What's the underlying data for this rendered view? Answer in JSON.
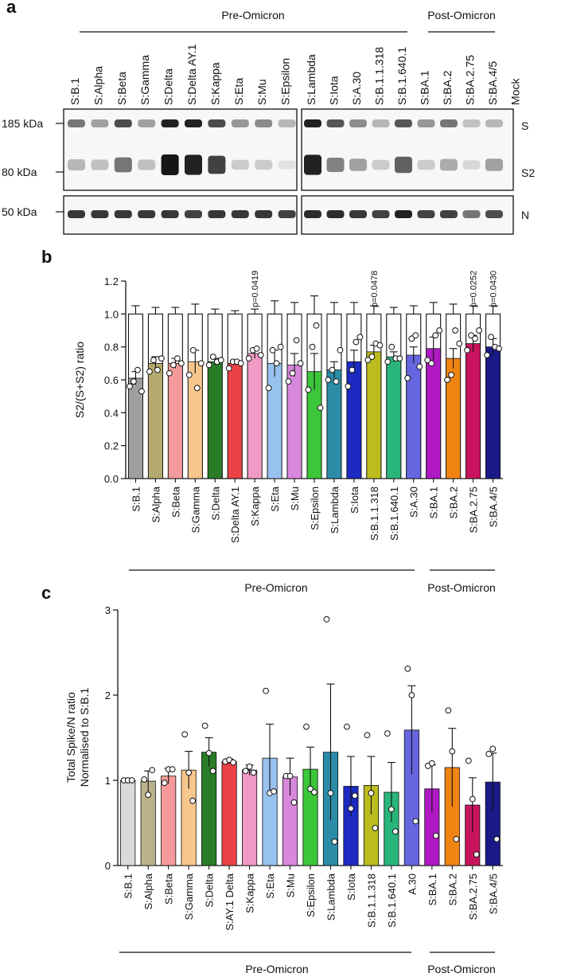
{
  "panel_a": {
    "letter": "a",
    "group_pre": "Pre-Omicron",
    "group_post": "Post-Omicron",
    "lanes_left": [
      "S:B.1",
      "S:Alpha",
      "S:Beta",
      "S:Gamma",
      "S:Delta",
      "S:Delta AY.1",
      "S:Kappa",
      "S:Eta",
      "S:Mu",
      "S:Epsilon"
    ],
    "lanes_right": [
      "S:Lambda",
      "S:Iota",
      "S:A.30",
      "S:B.1.1.318",
      "S:B.1.640.1",
      "S:BA.1",
      "S:BA.2",
      "S:BA.2.75",
      "S:BA.4/5",
      "Mock"
    ],
    "markers": [
      "185 kDa",
      "80 kDa",
      "50 kDa"
    ],
    "band_labels": [
      "S",
      "S2",
      "N"
    ],
    "band_intensity": {
      "S": [
        0.55,
        0.35,
        0.75,
        0.35,
        0.95,
        0.95,
        0.75,
        0.4,
        0.45,
        0.25,
        0.95,
        0.7,
        0.45,
        0.25,
        0.7,
        0.4,
        0.55,
        0.2,
        0.25,
        0.0
      ],
      "S2": [
        0.25,
        0.2,
        0.55,
        0.2,
        1.0,
        0.95,
        0.8,
        0.15,
        0.15,
        0.05,
        0.95,
        0.5,
        0.35,
        0.15,
        0.65,
        0.15,
        0.3,
        0.1,
        0.35,
        0.0
      ],
      "N": [
        0.85,
        0.85,
        0.85,
        0.85,
        0.85,
        0.8,
        0.85,
        0.85,
        0.85,
        0.8,
        0.9,
        0.9,
        0.85,
        0.8,
        0.95,
        0.8,
        0.8,
        0.55,
        0.75,
        0.0
      ]
    }
  },
  "chart_data": [
    {
      "panel": "b",
      "type": "bar",
      "ylabel": "S2/(S+S2) ratio",
      "ylim": [
        0,
        1.2
      ],
      "yticks": [
        "0.0",
        "0.2",
        "0.4",
        "0.6",
        "0.8",
        "1.0",
        "1.2"
      ],
      "categories": [
        "S:B.1",
        "S:Alpha",
        "S:Beta",
        "S:Gamma",
        "S:Delta",
        "S:Delta AY.1",
        "S:Kappa",
        "S:Eta",
        "S:Mu",
        "S:Epsilon",
        "S:Lambda",
        "S:Iota",
        "S:B.1.1.318",
        "S:B.1.640.1",
        "S:A.30",
        "S:BA.1",
        "S:BA.2",
        "S:BA.2.75",
        "S:BA.4/5"
      ],
      "values": [
        0.61,
        0.7,
        0.7,
        0.71,
        0.71,
        0.7,
        0.76,
        0.7,
        0.69,
        0.65,
        0.66,
        0.71,
        0.77,
        0.74,
        0.75,
        0.79,
        0.73,
        0.82,
        0.8
      ],
      "errors": [
        0.04,
        0.04,
        0.03,
        0.07,
        0.02,
        0.01,
        0.03,
        0.08,
        0.07,
        0.11,
        0.05,
        0.07,
        0.04,
        0.03,
        0.05,
        0.07,
        0.06,
        0.05,
        0.05
      ],
      "stacked_total": 1.0,
      "total_errors": [
        0.05,
        0.04,
        0.04,
        0.06,
        0.03,
        0.02,
        0.03,
        0.08,
        0.07,
        0.11,
        0.07,
        0.07,
        0.05,
        0.04,
        0.05,
        0.07,
        0.06,
        0.05,
        0.05
      ],
      "points": [
        [
          0.56,
          0.59,
          0.66,
          0.53
        ],
        [
          0.65,
          0.72,
          0.66,
          0.73
        ],
        [
          0.64,
          0.69,
          0.73,
          0.7
        ],
        [
          0.63,
          0.78,
          0.55,
          0.7
        ],
        [
          0.69,
          0.74,
          0.71,
          0.72
        ],
        [
          0.67,
          0.71,
          0.71,
          0.7
        ],
        [
          0.73,
          0.78,
          0.79,
          0.75
        ],
        [
          0.55,
          0.78,
          0.7,
          0.8
        ],
        [
          0.59,
          0.64,
          0.84,
          0.7
        ],
        [
          0.54,
          0.8,
          0.93,
          0.43
        ],
        [
          0.6,
          0.66,
          0.59,
          0.78
        ],
        [
          0.56,
          0.66,
          0.83,
          0.86
        ],
        [
          0.72,
          0.74,
          0.82,
          0.81
        ],
        [
          0.71,
          0.8,
          0.73,
          0.73
        ],
        [
          0.61,
          0.85,
          0.87,
          0.68
        ],
        [
          0.72,
          0.7,
          0.87,
          0.9
        ],
        [
          0.6,
          0.63,
          0.9,
          0.82
        ],
        [
          0.78,
          0.87,
          0.85,
          0.9
        ],
        [
          0.75,
          0.86,
          0.8,
          0.79
        ]
      ],
      "colors": [
        "#9e9e9e",
        "#b5aa6e",
        "#f49a9a",
        "#f6c68c",
        "#2a7d26",
        "#ea4245",
        "#f29ac6",
        "#98c2ee",
        "#d888dc",
        "#3cc63a",
        "#2b8ca8",
        "#1c2ac2",
        "#bcbc20",
        "#2ab57a",
        "#6666e0",
        "#b019c4",
        "#f08412",
        "#c8145e",
        "#1a1a86"
      ],
      "pvalues": [
        {
          "index": 6,
          "text": "p=0.0419"
        },
        {
          "index": 12,
          "text": "p=0.0478"
        },
        {
          "index": 17,
          "text": "p=0.0252"
        },
        {
          "index": 18,
          "text": "p=0.0430"
        }
      ],
      "group_pre": "Pre-Omicron",
      "group_post": "Post-Omicron"
    },
    {
      "panel": "c",
      "type": "bar",
      "ylabel_line1": "Total Spike/N ratio",
      "ylabel_line2": "Normalised to S:B.1",
      "ylim": [
        0,
        3
      ],
      "yticks": [
        "0",
        "1",
        "2",
        "3"
      ],
      "categories": [
        "S:B.1",
        "S:Alpha",
        "S:Beta",
        "S:Gamma",
        "S:Delta",
        "S:AY.1 Delta",
        "S:Kappa",
        "S:Eta",
        "S:Mu",
        "S:Epsilon",
        "S:Lambda",
        "S:Iota",
        "S:B.1.1.318",
        "S:B.1.640.1",
        "A.30",
        "S:BA.1",
        "S:BA.2",
        "S:BA.2.75",
        "S:BA.4/5"
      ],
      "values": [
        1.0,
        0.99,
        1.05,
        1.12,
        1.33,
        1.22,
        1.12,
        1.26,
        1.04,
        1.13,
        1.33,
        0.93,
        0.94,
        0.86,
        1.59,
        0.9,
        1.15,
        0.71,
        0.98
      ],
      "errors": [
        0.0,
        0.12,
        0.09,
        0.22,
        0.17,
        0.03,
        0.06,
        0.4,
        0.22,
        0.26,
        0.8,
        0.35,
        0.34,
        0.35,
        0.52,
        0.28,
        0.46,
        0.32,
        0.34
      ],
      "points": [
        [
          1.0,
          1.0,
          1.0
        ],
        [
          1.01,
          0.83,
          1.12
        ],
        [
          0.97,
          1.13,
          1.13
        ],
        [
          1.54,
          1.09,
          0.76
        ],
        [
          1.64,
          1.32,
          1.11
        ],
        [
          1.22,
          1.24,
          1.21
        ],
        [
          1.11,
          1.16,
          1.09
        ],
        [
          2.05,
          0.85,
          0.87
        ],
        [
          1.05,
          1.05,
          0.74
        ],
        [
          1.63,
          0.9,
          0.86
        ],
        [
          2.89,
          0.85,
          0.28
        ],
        [
          1.63,
          0.67,
          0.82
        ],
        [
          1.53,
          0.85,
          0.44
        ],
        [
          1.55,
          0.66,
          0.4
        ],
        [
          2.31,
          2.0,
          0.52
        ],
        [
          1.17,
          1.2,
          0.35
        ],
        [
          1.82,
          1.34,
          0.31
        ],
        [
          1.23,
          0.78,
          0.13
        ],
        [
          1.31,
          1.37,
          0.31
        ]
      ],
      "colors": [
        "#dadada",
        "#bbb28a",
        "#f49a9a",
        "#f6c68c",
        "#2a7d26",
        "#ea4245",
        "#f29ac6",
        "#98c2ee",
        "#d888dc",
        "#3cc63a",
        "#2b8ca8",
        "#1c2ac2",
        "#bcbc20",
        "#2ab57a",
        "#6666e0",
        "#b019c4",
        "#f08412",
        "#c8145e",
        "#1a1a86"
      ],
      "group_pre": "Pre-Omicron",
      "group_post": "Post-Omicron"
    }
  ]
}
